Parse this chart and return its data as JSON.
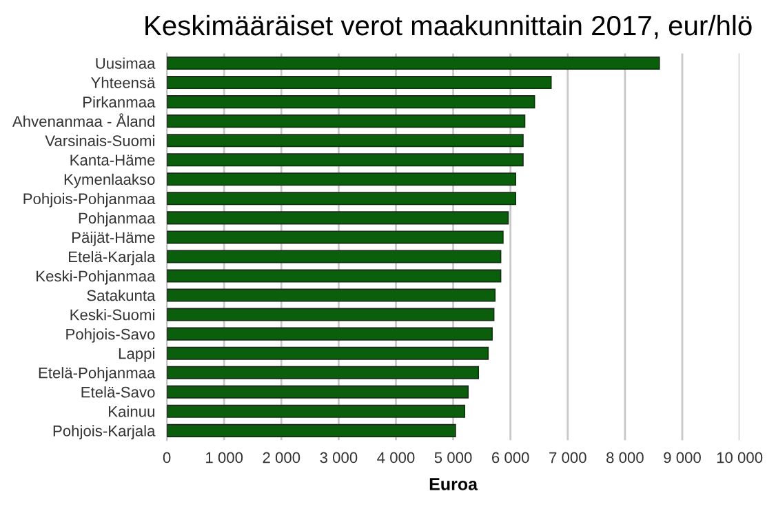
{
  "chart_data": {
    "type": "bar",
    "orientation": "horizontal",
    "title": "Keskimääräiset verot maakunnittain 2017, eur/hlö",
    "xlabel": "Euroa",
    "categories": [
      "Uusimaa",
      "Yhteensä",
      "Pirkanmaa",
      "Ahvenanmaa - Åland",
      "Varsinais-Suomi",
      "Kanta-Häme",
      "Kymenlaakso",
      "Pohjois-Pohjanmaa",
      "Pohjanmaa",
      "Päijät-Häme",
      "Etelä-Karjala",
      "Keski-Pohjanmaa",
      "Satakunta",
      "Keski-Suomi",
      "Pohjois-Savo",
      "Lappi",
      "Etelä-Pohjanmaa",
      "Etelä-Savo",
      "Kainuu",
      "Pohjois-Karjala"
    ],
    "values": [
      8600,
      6710,
      6420,
      6250,
      6220,
      6220,
      6090,
      6090,
      5960,
      5870,
      5830,
      5830,
      5730,
      5710,
      5680,
      5610,
      5440,
      5260,
      5200,
      5040
    ],
    "color": "#0b5e0b",
    "xlim": [
      0,
      10000
    ],
    "xticks": [
      0,
      {
        "value": 1000,
        "label": "1 000"
      },
      {
        "value": 2000,
        "label": "2 000"
      },
      {
        "value": 3000,
        "label": "3 000"
      },
      {
        "value": 4000,
        "label": "4 000"
      },
      {
        "value": 5000,
        "label": "5 000"
      },
      {
        "value": 6000,
        "label": "6 000"
      },
      {
        "value": 7000,
        "label": "7 000"
      },
      {
        "value": 8000,
        "label": "8 000"
      },
      {
        "value": 9000,
        "label": "9 000"
      },
      {
        "value": 10000,
        "label": "10 000"
      }
    ],
    "grid": "x",
    "legend": false
  }
}
